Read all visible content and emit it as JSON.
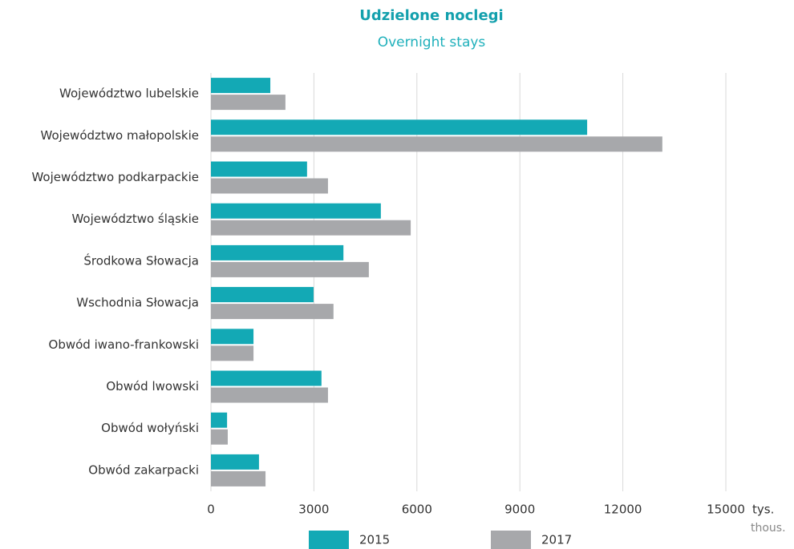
{
  "chart_data": {
    "type": "bar",
    "orientation": "horizontal",
    "title": "Udzielone noclegi",
    "subtitle": "Overnight stays",
    "x_unit": "tys.",
    "x_unit_en": "thous.",
    "categories": [
      "Województwo lubelskie",
      "Województwo małopolskie",
      "Województwo podkarpackie",
      "Województwo śląskie",
      "Środkowa Słowacja",
      "Wschodnia Słowacja",
      "Obwód iwano-frankowski",
      "Obwód lwowski",
      "Obwód wołyński",
      "Obwód zakarpacki"
    ],
    "series": [
      {
        "name": "2015",
        "color": "#13a9b5",
        "values": [
          1730,
          10960,
          2800,
          4950,
          3860,
          2990,
          1240,
          3220,
          470,
          1400
        ]
      },
      {
        "name": "2017",
        "color": "#a7a8ab",
        "values": [
          2170,
          13150,
          3410,
          5820,
          4600,
          3570,
          1240,
          3410,
          490,
          1590
        ]
      }
    ],
    "xlim": [
      0,
      15000
    ],
    "xticks": [
      0,
      3000,
      6000,
      9000,
      12000,
      15000
    ],
    "grid": true,
    "legend": "bottom"
  }
}
